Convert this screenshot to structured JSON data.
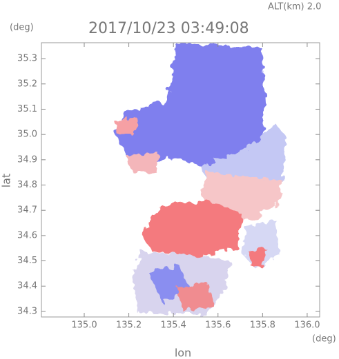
{
  "chart_data": {
    "type": "map",
    "title": "2017/10/23 03:49:08",
    "subtitle": "ALT(km) 2.0",
    "x_label": "lon",
    "y_label": "lat",
    "x_unit": "(deg)",
    "y_unit": "(deg)",
    "xlim": [
      134.808,
      136.056
    ],
    "ylim": [
      34.278,
      35.363
    ],
    "xticks": [
      {
        "value": 135,
        "label": "135.0"
      },
      135.2,
      135.4,
      135.6,
      135.8,
      {
        "value": 136,
        "label": "136.0"
      }
    ],
    "yticks": [
      34.3,
      34.4,
      34.5,
      34.6,
      34.7,
      34.8,
      34.9,
      {
        "value": 35,
        "label": "35.0"
      },
      35.1,
      35.2,
      35.3
    ]
  }
}
